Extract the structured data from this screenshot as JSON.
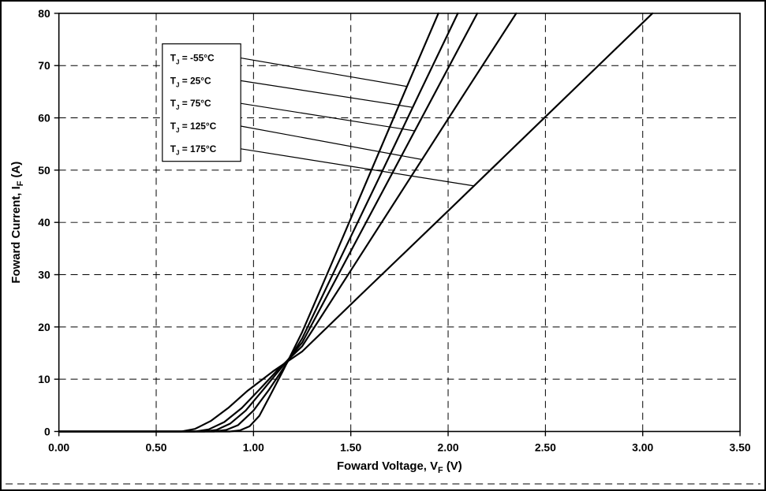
{
  "figure": {
    "background": "#ffffff",
    "border_color": "#000000",
    "line_color": "#000000"
  },
  "chart_data": {
    "type": "line",
    "title": "",
    "xlabel": "Foward Voltage, VF (V)",
    "ylabel": "Foward Current, IF (A)",
    "xlabel_segments": [
      {
        "t": "Foward Voltage, V"
      },
      {
        "t": "F",
        "sub": true
      },
      {
        "t": " (V)"
      }
    ],
    "ylabel_segments": [
      {
        "t": "Foward Current, I"
      },
      {
        "t": "F",
        "sub": true
      },
      {
        "t": " (A)"
      }
    ],
    "xlim": [
      0,
      3.5
    ],
    "ylim": [
      0,
      80
    ],
    "xticks": [
      0,
      0.5,
      1.0,
      1.5,
      2.0,
      2.5,
      3.0,
      3.5
    ],
    "xtick_labels": [
      "0.00",
      "0.50",
      "1.00",
      "1.50",
      "2.00",
      "2.50",
      "3.00",
      "3.50"
    ],
    "yticks": [
      0,
      10,
      20,
      30,
      40,
      50,
      60,
      70,
      80
    ],
    "ytick_labels": [
      "0",
      "10",
      "20",
      "30",
      "40",
      "50",
      "60",
      "70",
      "80"
    ],
    "grid": true,
    "grid_style": "dashed",
    "legend_position": "upper-left-inside",
    "series": [
      {
        "name": "TJ = -55°C",
        "label_segments": [
          {
            "t": "T"
          },
          {
            "t": "J",
            "sub": true
          },
          {
            "t": " = -55°C"
          }
        ],
        "points": [
          [
            0,
            0
          ],
          [
            0.75,
            0
          ],
          [
            0.88,
            0
          ],
          [
            0.93,
            0.2
          ],
          [
            0.98,
            1
          ],
          [
            1.03,
            3
          ],
          [
            1.08,
            6.5
          ],
          [
            1.15,
            11.5
          ],
          [
            1.25,
            19
          ],
          [
            1.4,
            32
          ],
          [
            1.6,
            49.5
          ],
          [
            1.8,
            67
          ],
          [
            1.95,
            80
          ]
        ],
        "leader_target": [
          1.79,
          66
        ]
      },
      {
        "name": "TJ = 25°C",
        "label_segments": [
          {
            "t": "T"
          },
          {
            "t": "J",
            "sub": true
          },
          {
            "t": " = 25°C"
          }
        ],
        "points": [
          [
            0,
            0
          ],
          [
            0.68,
            0
          ],
          [
            0.8,
            0
          ],
          [
            0.86,
            0.3
          ],
          [
            0.92,
            1.2
          ],
          [
            1.0,
            4
          ],
          [
            1.08,
            8
          ],
          [
            1.17,
            13
          ],
          [
            1.25,
            17.8
          ],
          [
            1.45,
            33.4
          ],
          [
            1.65,
            48.9
          ],
          [
            1.85,
            64.5
          ],
          [
            2.05,
            80
          ]
        ],
        "leader_target": [
          1.82,
          62
        ]
      },
      {
        "name": "TJ = 75°C",
        "label_segments": [
          {
            "t": "T"
          },
          {
            "t": "J",
            "sub": true
          },
          {
            "t": " = 75°C"
          }
        ],
        "points": [
          [
            0,
            0
          ],
          [
            0.64,
            0
          ],
          [
            0.75,
            0
          ],
          [
            0.81,
            0.3
          ],
          [
            0.88,
            1.5
          ],
          [
            0.96,
            4
          ],
          [
            1.05,
            8
          ],
          [
            1.15,
            12.5
          ],
          [
            1.25,
            17
          ],
          [
            1.5,
            34.5
          ],
          [
            1.75,
            52
          ],
          [
            1.95,
            66
          ],
          [
            2.15,
            80
          ]
        ],
        "leader_target": [
          1.83,
          57.5
        ]
      },
      {
        "name": "TJ = 125°C",
        "label_segments": [
          {
            "t": "T"
          },
          {
            "t": "J",
            "sub": true
          },
          {
            "t": " = 125°C"
          }
        ],
        "points": [
          [
            0,
            0
          ],
          [
            0.6,
            0
          ],
          [
            0.7,
            0
          ],
          [
            0.77,
            0.4
          ],
          [
            0.85,
            1.8
          ],
          [
            0.94,
            4.5
          ],
          [
            1.03,
            8
          ],
          [
            1.13,
            12
          ],
          [
            1.25,
            16.3
          ],
          [
            1.5,
            30.8
          ],
          [
            1.8,
            48.2
          ],
          [
            2.1,
            65.6
          ],
          [
            2.35,
            80
          ]
        ],
        "leader_target": [
          1.87,
          52
        ]
      },
      {
        "name": "TJ = 175°C",
        "label_segments": [
          {
            "t": "T"
          },
          {
            "t": "J",
            "sub": true
          },
          {
            "t": " = 175°C"
          }
        ],
        "points": [
          [
            0,
            0
          ],
          [
            0.55,
            0
          ],
          [
            0.63,
            0
          ],
          [
            0.7,
            0.5
          ],
          [
            0.78,
            2
          ],
          [
            0.87,
            4.5
          ],
          [
            0.97,
            7.8
          ],
          [
            1.1,
            11.5
          ],
          [
            1.25,
            15.3
          ],
          [
            1.55,
            26.1
          ],
          [
            2.0,
            42.2
          ],
          [
            2.5,
            60.2
          ],
          [
            3.05,
            80
          ]
        ],
        "leader_target": [
          2.13,
          47
        ]
      }
    ]
  }
}
